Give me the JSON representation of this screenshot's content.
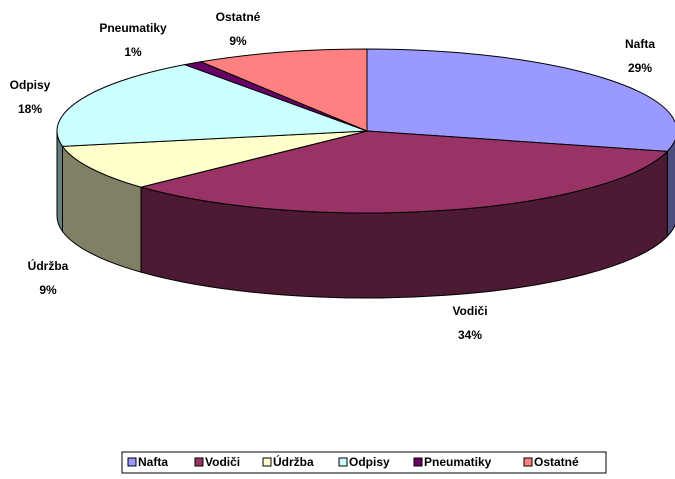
{
  "chart_data": {
    "type": "pie3d",
    "categories": [
      "Nafta",
      "Vodiči",
      "Údržba",
      "Odpisy",
      "Pneumatiky",
      "Ostatné"
    ],
    "values": [
      29,
      34,
      9,
      18,
      1,
      9
    ],
    "value_labels": [
      "29%",
      "34%",
      "9%",
      "18%",
      "1%",
      "9%"
    ],
    "colors": [
      "#9999ff",
      "#993366",
      "#ffffcc",
      "#ccffff",
      "#660066",
      "#ff8080"
    ],
    "legend": "bottom"
  }
}
